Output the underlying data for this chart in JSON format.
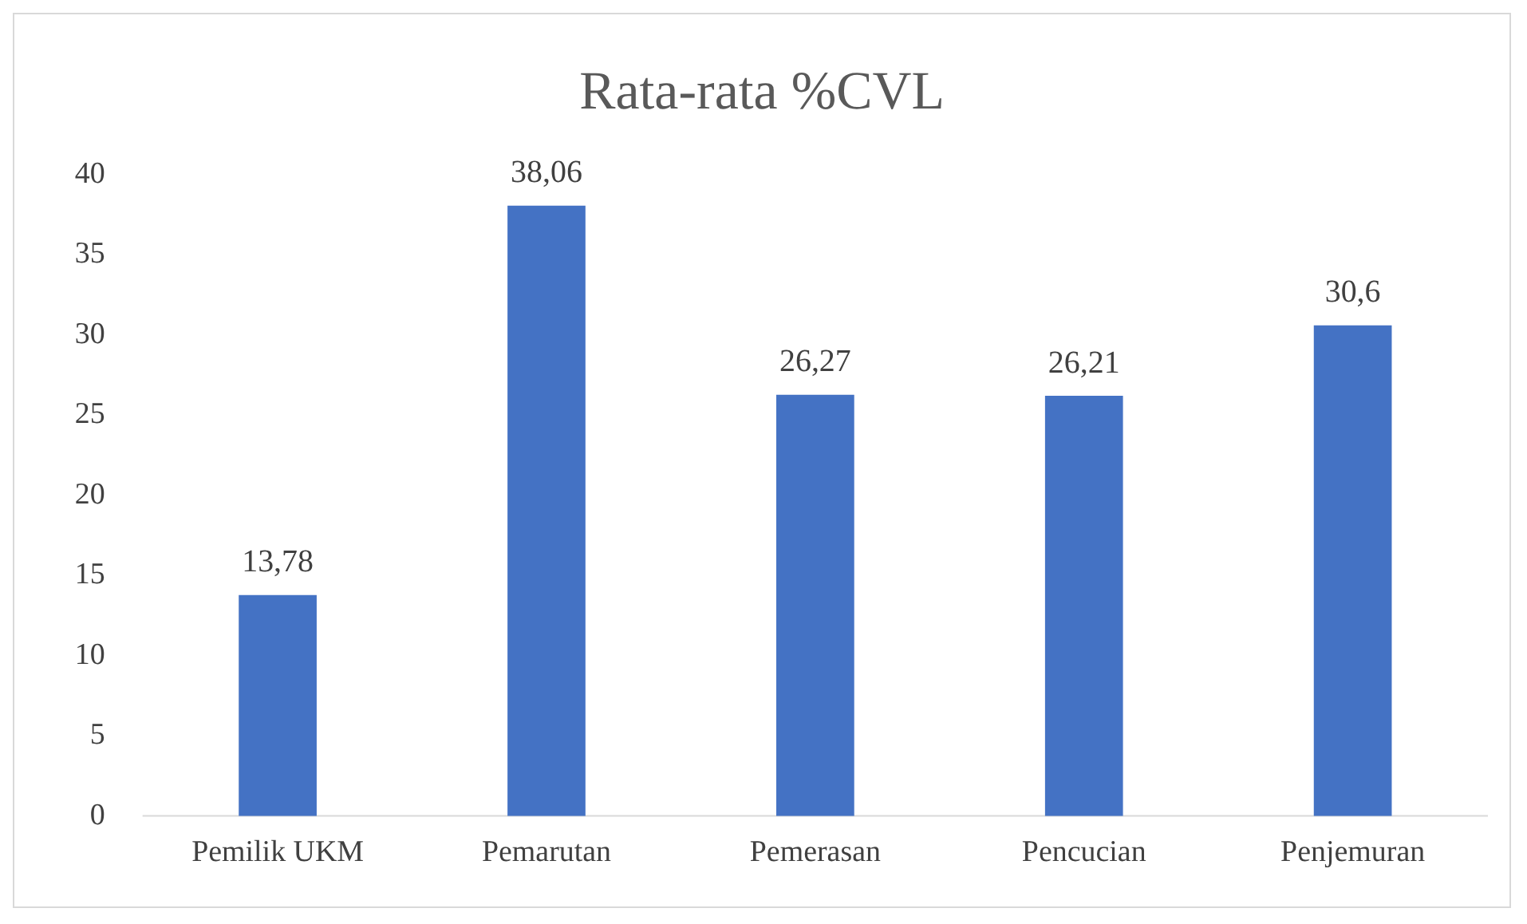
{
  "chart_data": {
    "type": "bar",
    "title": "Rata-rata %CVL",
    "categories": [
      "Pemilik UKM",
      "Pemarutan",
      "Pemerasan",
      "Pencucian",
      "Penjemuran"
    ],
    "values": [
      13.78,
      38.06,
      26.27,
      26.21,
      30.6
    ],
    "value_labels": [
      "13,78",
      "38,06",
      "26,27",
      "26,21",
      "30,6"
    ],
    "color": "#4472c4",
    "ylim": [
      0,
      40
    ],
    "yticks": [
      0,
      5,
      10,
      15,
      20,
      25,
      30,
      35,
      40
    ],
    "grid": false,
    "legend": false
  }
}
